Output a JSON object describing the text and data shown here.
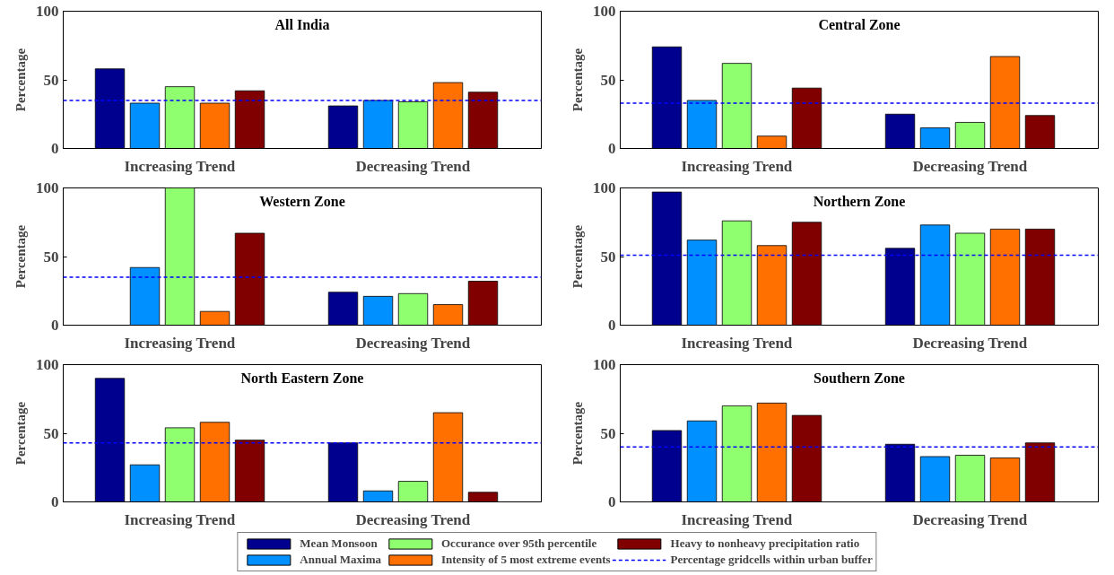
{
  "chart_data": [
    {
      "type": "bar",
      "title": "All India",
      "ylabel": "Percentage",
      "categories": [
        "Increasing Trend",
        "Decreasing Trend"
      ],
      "ylim": [
        0,
        100
      ],
      "yticks": [
        0,
        50,
        100
      ],
      "grid": false,
      "legend": "bottom",
      "series": [
        {
          "name": "Mean Monsoon",
          "color": "#00008f",
          "values": [
            58,
            31
          ]
        },
        {
          "name": "Annual Maxima",
          "color": "#0090ff",
          "values": [
            33,
            35
          ]
        },
        {
          "name": "Occurance over 95th percentile",
          "color": "#8fff70",
          "values": [
            45,
            34
          ]
        },
        {
          "name": "Intensity of 5 most extreme events",
          "color": "#ff7000",
          "values": [
            33,
            48
          ]
        },
        {
          "name": "Heavy to nonheavy precipitation ratio",
          "color": "#800000",
          "values": [
            42,
            41
          ]
        }
      ],
      "ref_lines": [
        {
          "axis": "y",
          "value": 35,
          "label": "Percentage gridcells within urban buffer",
          "color": "#0000ff",
          "line_style": "dashed"
        }
      ]
    },
    {
      "type": "bar",
      "title": "Central Zone",
      "ylabel": "Percentage",
      "categories": [
        "Increasing Trend",
        "Decreasing Trend"
      ],
      "ylim": [
        0,
        100
      ],
      "yticks": [
        0,
        50,
        100
      ],
      "grid": false,
      "series": [
        {
          "color": "#00008f",
          "values": [
            74,
            25
          ]
        },
        {
          "color": "#0090ff",
          "values": [
            35,
            15
          ]
        },
        {
          "color": "#8fff70",
          "values": [
            62,
            19
          ]
        },
        {
          "color": "#ff7000",
          "values": [
            9,
            67
          ]
        },
        {
          "color": "#800000",
          "values": [
            44,
            24
          ]
        }
      ],
      "ref_lines": [
        {
          "axis": "y",
          "value": 33,
          "color": "#0000ff",
          "line_style": "dashed"
        }
      ]
    },
    {
      "type": "bar",
      "title": "Western Zone",
      "ylabel": "Percentage",
      "categories": [
        "Increasing Trend",
        "Decreasing Trend"
      ],
      "ylim": [
        0,
        100
      ],
      "yticks": [
        0,
        50,
        100
      ],
      "grid": false,
      "series": [
        {
          "color": "#00008f",
          "values": [
            null,
            24
          ]
        },
        {
          "color": "#0090ff",
          "values": [
            42,
            21
          ]
        },
        {
          "color": "#8fff70",
          "values": [
            100,
            23
          ]
        },
        {
          "color": "#ff7000",
          "values": [
            10,
            15
          ]
        },
        {
          "color": "#800000",
          "values": [
            67,
            32
          ]
        }
      ],
      "ref_lines": [
        {
          "axis": "y",
          "value": 35,
          "color": "#0000ff",
          "line_style": "dashed"
        }
      ]
    },
    {
      "type": "bar",
      "title": "Northern Zone",
      "ylabel": "Percentage",
      "categories": [
        "Increasing Trend",
        "Decreasing Trend"
      ],
      "ylim": [
        0,
        100
      ],
      "yticks": [
        0,
        50,
        100
      ],
      "grid": false,
      "series": [
        {
          "color": "#00008f",
          "values": [
            97,
            56
          ]
        },
        {
          "color": "#0090ff",
          "values": [
            62,
            73
          ]
        },
        {
          "color": "#8fff70",
          "values": [
            76,
            67
          ]
        },
        {
          "color": "#ff7000",
          "values": [
            58,
            70
          ]
        },
        {
          "color": "#800000",
          "values": [
            75,
            70
          ]
        }
      ],
      "ref_lines": [
        {
          "axis": "y",
          "value": 51,
          "color": "#0000ff",
          "line_style": "dashed"
        }
      ]
    },
    {
      "type": "bar",
      "title": "North Eastern Zone",
      "ylabel": "Percentage",
      "categories": [
        "Increasing Trend",
        "Decreasing Trend"
      ],
      "ylim": [
        0,
        100
      ],
      "yticks": [
        0,
        50,
        100
      ],
      "grid": false,
      "series": [
        {
          "color": "#00008f",
          "values": [
            90,
            43
          ]
        },
        {
          "color": "#0090ff",
          "values": [
            27,
            8
          ]
        },
        {
          "color": "#8fff70",
          "values": [
            54,
            15
          ]
        },
        {
          "color": "#ff7000",
          "values": [
            58,
            65
          ]
        },
        {
          "color": "#800000",
          "values": [
            45,
            7
          ]
        }
      ],
      "ref_lines": [
        {
          "axis": "y",
          "value": 43,
          "color": "#0000ff",
          "line_style": "dashed"
        }
      ]
    },
    {
      "type": "bar",
      "title": "Southern Zone",
      "ylabel": "Percentage",
      "categories": [
        "Increasing Trend",
        "Decreasing Trend"
      ],
      "ylim": [
        0,
        100
      ],
      "yticks": [
        0,
        50,
        100
      ],
      "grid": false,
      "series": [
        {
          "color": "#00008f",
          "values": [
            52,
            42
          ]
        },
        {
          "color": "#0090ff",
          "values": [
            59,
            33
          ]
        },
        {
          "color": "#8fff70",
          "values": [
            70,
            34
          ]
        },
        {
          "color": "#ff7000",
          "values": [
            72,
            32
          ]
        },
        {
          "color": "#800000",
          "values": [
            63,
            43
          ]
        }
      ],
      "ref_lines": [
        {
          "axis": "y",
          "value": 40,
          "color": "#0000ff",
          "line_style": "dashed"
        }
      ]
    }
  ]
}
